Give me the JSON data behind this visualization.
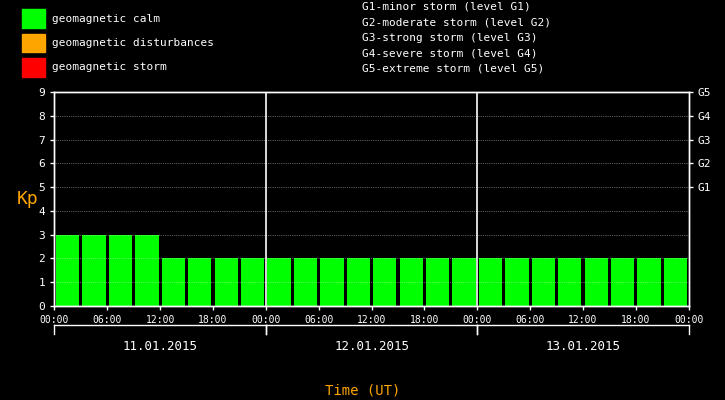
{
  "background_color": "#000000",
  "bar_color_calm": "#00ff00",
  "bar_color_disturb": "#ffa500",
  "bar_color_storm": "#ff0000",
  "text_color": "#ffffff",
  "orange_color": "#ffa500",
  "title_legend_left": [
    [
      "geomagnetic calm",
      "#00ff00"
    ],
    [
      "geomagnetic disturbances",
      "#ffa500"
    ],
    [
      "geomagnetic storm",
      "#ff0000"
    ]
  ],
  "legend_right": [
    "G1-minor storm (level G1)",
    "G2-moderate storm (level G2)",
    "G3-strong storm (level G3)",
    "G4-severe storm (level G4)",
    "G5-extreme storm (level G5)"
  ],
  "days": [
    "11.01.2015",
    "12.01.2015",
    "13.01.2015"
  ],
  "kp_values": [
    3,
    3,
    3,
    3,
    2,
    2,
    2,
    2,
    2,
    2,
    2,
    2,
    2,
    2,
    2,
    2,
    2,
    2,
    2,
    2,
    2,
    2,
    2,
    2
  ],
  "ylim": [
    0,
    9
  ],
  "ylabel": "Kp",
  "xlabel": "Time (UT)",
  "figsize": [
    7.25,
    4.0
  ],
  "dpi": 100,
  "font_family": "monospace",
  "legend_fontsize": 8,
  "axis_fontsize": 8,
  "xlabel_fontsize": 10,
  "day_label_fontsize": 9
}
